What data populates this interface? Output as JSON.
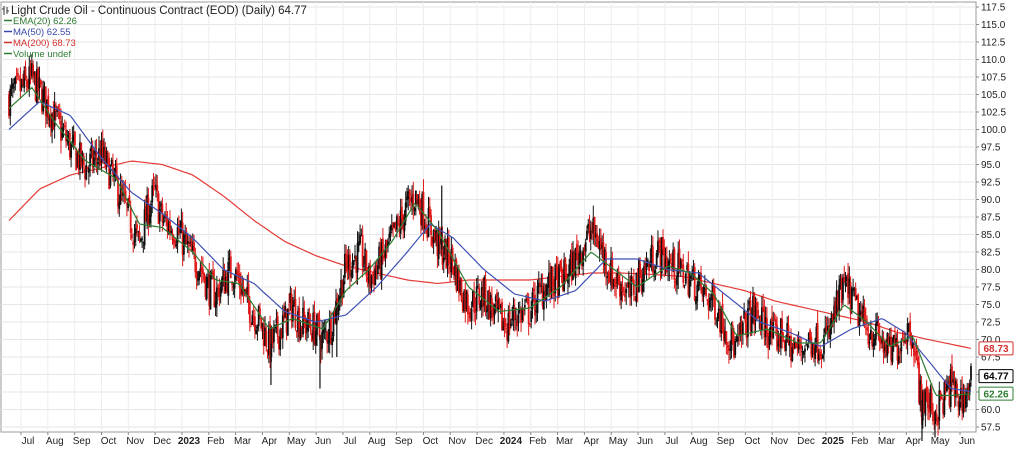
{
  "chart_data": {
    "type": "candlestick",
    "title": "Light Crude Oil - Continuous Contract (EOD) (Daily) 64.77",
    "ylim": [
      54.0,
      119.5
    ],
    "y_ticks": [
      "57.5",
      "60.0",
      "62.5",
      "65.0",
      "67.5",
      "70.0",
      "72.5",
      "75.0",
      "77.5",
      "80.0",
      "82.5",
      "85.0",
      "87.5",
      "90.0",
      "92.5",
      "95.0",
      "97.5",
      "100.0",
      "102.5",
      "105.0",
      "107.5",
      "110.0",
      "112.5",
      "115.0",
      "117.5"
    ],
    "x_ticks": [
      {
        "label": "Jul",
        "bold": false
      },
      {
        "label": "Aug",
        "bold": false
      },
      {
        "label": "Sep",
        "bold": false
      },
      {
        "label": "Oct",
        "bold": false
      },
      {
        "label": "Nov",
        "bold": false
      },
      {
        "label": "Dec",
        "bold": false
      },
      {
        "label": "2023",
        "bold": true
      },
      {
        "label": "Feb",
        "bold": false
      },
      {
        "label": "Mar",
        "bold": false
      },
      {
        "label": "Apr",
        "bold": false
      },
      {
        "label": "May",
        "bold": false
      },
      {
        "label": "Jun",
        "bold": false
      },
      {
        "label": "Jul",
        "bold": false
      },
      {
        "label": "Aug",
        "bold": false
      },
      {
        "label": "Sep",
        "bold": false
      },
      {
        "label": "Oct",
        "bold": false
      },
      {
        "label": "Nov",
        "bold": false
      },
      {
        "label": "Dec",
        "bold": false
      },
      {
        "label": "2024",
        "bold": true
      },
      {
        "label": "Feb",
        "bold": false
      },
      {
        "label": "Mar",
        "bold": false
      },
      {
        "label": "Apr",
        "bold": false
      },
      {
        "label": "May",
        "bold": false
      },
      {
        "label": "Jun",
        "bold": false
      },
      {
        "label": "Jul",
        "bold": false
      },
      {
        "label": "Aug",
        "bold": false
      },
      {
        "label": "Sep",
        "bold": false
      },
      {
        "label": "Oct",
        "bold": false
      },
      {
        "label": "Nov",
        "bold": false
      },
      {
        "label": "Dec",
        "bold": false
      },
      {
        "label": "2025",
        "bold": true
      },
      {
        "label": "Feb",
        "bold": false
      },
      {
        "label": "Mar",
        "bold": false
      },
      {
        "label": "Apr",
        "bold": false
      },
      {
        "label": "May",
        "bold": false
      },
      {
        "label": "Jun",
        "bold": false
      }
    ],
    "legend": [
      {
        "text": "EMA(20) 62.26",
        "color": "#2e7d32"
      },
      {
        "text": "MA(50) 62.55",
        "color": "#3949ab"
      },
      {
        "text": "MA(200) 68.73",
        "color": "#d32f2f"
      },
      {
        "text": "Volume undef",
        "color": "#2e7d32"
      }
    ],
    "badges": [
      {
        "value": 68.73,
        "text": "68.73",
        "color": "#d32f2f"
      },
      {
        "value": 64.77,
        "text": "64.77",
        "color": "#000000"
      },
      {
        "value": 62.26,
        "text": "62.26",
        "color": "#2e7d32"
      }
    ],
    "anchors": [
      [
        0,
        104.5
      ],
      [
        3,
        107.2
      ],
      [
        5,
        103.5
      ],
      [
        8,
        97.5
      ],
      [
        10,
        94.5
      ],
      [
        12,
        96.5
      ],
      [
        14,
        92.0
      ],
      [
        16,
        86.5
      ],
      [
        17,
        83.5
      ],
      [
        18,
        88.0
      ],
      [
        19,
        91.0
      ],
      [
        20,
        87.0
      ],
      [
        22,
        85.5
      ],
      [
        24,
        81.5
      ],
      [
        25,
        80.5
      ],
      [
        26,
        77.5
      ],
      [
        27,
        76.5
      ],
      [
        29,
        80.0
      ],
      [
        30,
        78.5
      ],
      [
        31,
        75.5
      ],
      [
        33,
        72.0
      ],
      [
        34,
        69.0
      ],
      [
        36,
        72.5
      ],
      [
        37,
        75.0
      ],
      [
        38,
        72.5
      ],
      [
        40,
        71.5
      ],
      [
        41,
        70.0
      ],
      [
        42,
        72.0
      ],
      [
        43,
        76.0
      ],
      [
        44,
        80.5
      ],
      [
        46,
        82.5
      ],
      [
        47,
        78.5
      ],
      [
        49,
        82.0
      ],
      [
        51,
        86.5
      ],
      [
        52,
        89.0
      ],
      [
        53,
        90.5
      ],
      [
        54,
        88.5
      ],
      [
        55,
        86.0
      ],
      [
        56,
        83.5
      ],
      [
        58,
        81.0
      ],
      [
        59,
        77.0
      ],
      [
        60,
        75.0
      ],
      [
        62,
        76.5
      ],
      [
        63,
        74.5
      ],
      [
        64,
        73.0
      ],
      [
        65,
        72.0
      ],
      [
        66,
        73.5
      ],
      [
        68,
        74.0
      ],
      [
        69,
        76.0
      ],
      [
        70,
        77.5
      ],
      [
        72,
        78.5
      ],
      [
        73,
        79.5
      ],
      [
        75,
        83.5
      ],
      [
        76,
        85.5
      ],
      [
        77,
        84.0
      ],
      [
        78,
        81.0
      ],
      [
        79,
        78.5
      ],
      [
        80,
        78.0
      ],
      [
        81,
        76.0
      ],
      [
        82,
        78.5
      ],
      [
        84,
        81.5
      ],
      [
        85,
        82.5
      ],
      [
        86,
        81.0
      ],
      [
        88,
        79.5
      ],
      [
        89,
        78.5
      ],
      [
        90,
        77.5
      ],
      [
        91,
        76.0
      ],
      [
        92,
        75.5
      ],
      [
        94,
        70.5
      ],
      [
        95,
        68.5
      ],
      [
        96,
        72.0
      ],
      [
        97,
        74.0
      ],
      [
        98,
        73.0
      ],
      [
        99,
        71.5
      ],
      [
        100,
        70.0
      ],
      [
        101,
        71.0
      ],
      [
        102,
        69.0
      ],
      [
        103,
        68.5
      ],
      [
        104,
        69.5
      ],
      [
        105,
        70.0
      ],
      [
        106,
        69.5
      ],
      [
        107,
        70.5
      ],
      [
        108,
        74.5
      ],
      [
        109,
        77.5
      ],
      [
        110,
        76.0
      ],
      [
        111,
        73.5
      ],
      [
        112,
        71.5
      ],
      [
        113,
        71.0
      ],
      [
        114,
        69.5
      ],
      [
        115,
        68.0
      ],
      [
        116,
        69.0
      ],
      [
        117,
        71.5
      ],
      [
        118,
        71.0
      ],
      [
        119,
        61.5
      ],
      [
        120,
        61.0
      ],
      [
        121,
        59.5
      ],
      [
        122,
        61.5
      ],
      [
        123,
        63.5
      ],
      [
        124,
        61.5
      ],
      [
        125,
        62.0
      ],
      [
        125.6,
        64.77
      ]
    ],
    "ema20": [
      [
        0,
        103.0
      ],
      [
        3,
        106.0
      ],
      [
        6,
        101.0
      ],
      [
        10,
        95.5
      ],
      [
        14,
        93.0
      ],
      [
        17,
        86.5
      ],
      [
        20,
        86.0
      ],
      [
        24,
        82.5
      ],
      [
        27,
        78.5
      ],
      [
        30,
        78.0
      ],
      [
        34,
        71.5
      ],
      [
        37,
        73.0
      ],
      [
        41,
        71.5
      ],
      [
        44,
        77.0
      ],
      [
        47,
        80.0
      ],
      [
        50,
        84.0
      ],
      [
        53,
        89.5
      ],
      [
        56,
        85.5
      ],
      [
        60,
        77.5
      ],
      [
        64,
        74.0
      ],
      [
        68,
        74.5
      ],
      [
        72,
        77.5
      ],
      [
        76,
        82.5
      ],
      [
        79,
        80.0
      ],
      [
        82,
        77.5
      ],
      [
        86,
        80.5
      ],
      [
        89,
        79.5
      ],
      [
        92,
        76.5
      ],
      [
        95,
        70.5
      ],
      [
        99,
        71.5
      ],
      [
        103,
        69.5
      ],
      [
        106,
        69.5
      ],
      [
        109,
        75.0
      ],
      [
        112,
        72.5
      ],
      [
        115,
        69.0
      ],
      [
        118,
        70.5
      ],
      [
        121,
        62.0
      ],
      [
        123,
        62.0
      ],
      [
        125.6,
        62.26
      ]
    ],
    "ma50": [
      [
        0,
        100.0
      ],
      [
        4,
        104.0
      ],
      [
        8,
        102.0
      ],
      [
        12,
        96.0
      ],
      [
        16,
        91.0
      ],
      [
        20,
        88.0
      ],
      [
        24,
        84.5
      ],
      [
        28,
        80.0
      ],
      [
        32,
        78.0
      ],
      [
        36,
        74.0
      ],
      [
        40,
        72.5
      ],
      [
        44,
        73.5
      ],
      [
        48,
        77.5
      ],
      [
        52,
        82.5
      ],
      [
        55,
        86.5
      ],
      [
        58,
        84.5
      ],
      [
        62,
        80.0
      ],
      [
        66,
        76.5
      ],
      [
        70,
        75.5
      ],
      [
        74,
        77.0
      ],
      [
        78,
        81.5
      ],
      [
        82,
        81.5
      ],
      [
        86,
        80.0
      ],
      [
        90,
        79.5
      ],
      [
        94,
        76.0
      ],
      [
        98,
        72.5
      ],
      [
        102,
        71.0
      ],
      [
        106,
        69.0
      ],
      [
        110,
        71.5
      ],
      [
        114,
        73.0
      ],
      [
        117,
        71.0
      ],
      [
        120,
        67.0
      ],
      [
        123,
        63.0
      ],
      [
        125.6,
        62.55
      ]
    ],
    "ma200": [
      [
        0,
        87.0
      ],
      [
        4,
        91.5
      ],
      [
        8,
        93.5
      ],
      [
        12,
        94.5
      ],
      [
        16,
        95.5
      ],
      [
        20,
        95.0
      ],
      [
        24,
        93.5
      ],
      [
        28,
        90.5
      ],
      [
        32,
        87.0
      ],
      [
        36,
        84.0
      ],
      [
        40,
        82.0
      ],
      [
        44,
        80.5
      ],
      [
        48,
        79.5
      ],
      [
        52,
        78.5
      ],
      [
        56,
        78.0
      ],
      [
        60,
        78.5
      ],
      [
        64,
        78.5
      ],
      [
        68,
        78.5
      ],
      [
        72,
        79.0
      ],
      [
        76,
        79.5
      ],
      [
        80,
        79.5
      ],
      [
        84,
        79.3
      ],
      [
        88,
        79.0
      ],
      [
        92,
        78.0
      ],
      [
        96,
        77.0
      ],
      [
        100,
        75.5
      ],
      [
        104,
        74.5
      ],
      [
        108,
        73.5
      ],
      [
        112,
        72.5
      ],
      [
        116,
        71.0
      ],
      [
        120,
        70.0
      ],
      [
        125.6,
        68.73
      ]
    ]
  }
}
